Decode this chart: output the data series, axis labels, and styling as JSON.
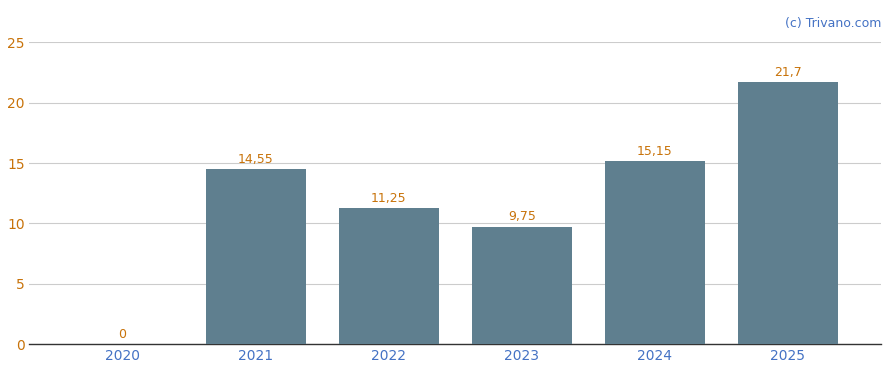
{
  "categories": [
    "2020",
    "2021",
    "2022",
    "2023",
    "2024",
    "2025"
  ],
  "values": [
    0,
    14.55,
    11.25,
    9.75,
    15.15,
    21.7
  ],
  "labels": [
    "0",
    "14,55",
    "11,25",
    "9,75",
    "15,15",
    "21,7"
  ],
  "bar_color": "#5f7f8f",
  "label_color_normal": "#c8730a",
  "label_color_last": "#c8730a",
  "ytick_color": "#c8730a",
  "xtick_color": "#4472c4",
  "background_color": "#ffffff",
  "grid_color": "#cccccc",
  "ylim": [
    0,
    25
  ],
  "yticks": [
    0,
    5,
    10,
    15,
    20,
    25
  ],
  "watermark": "(c) Trivano.com",
  "watermark_color": "#4472c4",
  "bar_width": 0.75,
  "figsize": [
    8.88,
    3.7
  ],
  "dpi": 100
}
